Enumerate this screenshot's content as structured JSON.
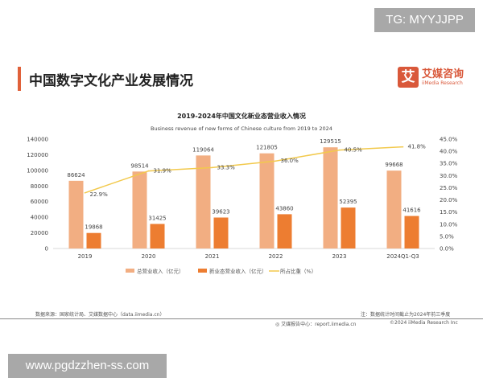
{
  "watermarks": {
    "top": "TG: MYYJJPP",
    "bottom": "www.pgdzzhen-ss.com"
  },
  "header": {
    "title": "中国数字文化产业发展情况",
    "logo_cn": "艾媒咨询",
    "logo_en": "iiMedia Research",
    "logo_mark": "艾"
  },
  "chart_data": {
    "type": "bar",
    "title": "2019-2024年中国文化新业态营业收入情况",
    "subtitle": "Business revenue of new forms of Chinese culture from 2019 to 2024",
    "categories": [
      "2019",
      "2020",
      "2021",
      "2022",
      "2023",
      "2024Q1-Q3"
    ],
    "series": [
      {
        "name": "总营业收入（亿元）",
        "type": "bar",
        "color": "#f2ae82",
        "values": [
          86624,
          98514,
          119064,
          121805,
          129515,
          99668
        ]
      },
      {
        "name": "新业态营业收入（亿元）",
        "type": "bar",
        "color": "#ed7d31",
        "values": [
          19868,
          31425,
          39623,
          43860,
          52395,
          41616
        ]
      },
      {
        "name": "所占比重（%）",
        "type": "line",
        "axis": "right",
        "color": "#f2c94c",
        "values": [
          22.9,
          31.9,
          33.3,
          36.0,
          40.5,
          41.8
        ],
        "labels": [
          "22.9%",
          "31.9%",
          "33.3%",
          "36.0%",
          "40.5%",
          "41.8%"
        ]
      }
    ],
    "ylim": [
      0,
      140000
    ],
    "yticks": [
      "0",
      "20000",
      "40000",
      "60000",
      "80000",
      "100000",
      "120000",
      "140000"
    ],
    "y2lim": [
      0,
      45
    ],
    "y2ticks": [
      "0.0%",
      "5.0%",
      "10.0%",
      "15.0%",
      "20.0%",
      "25.0%",
      "30.0%",
      "35.0%",
      "40.0%",
      "45.0%"
    ],
    "grid": false,
    "legend": "bottom"
  },
  "footer": {
    "source": "数据来源：国家统计局、艾媒数据中心（data.iimedia.cn）",
    "note": "注：数据统计时间截止为2024年前三季度",
    "report": "艾媒报告中心：report.iimedia.cn",
    "copyright": "©2024  iiMedia Research  Inc"
  }
}
